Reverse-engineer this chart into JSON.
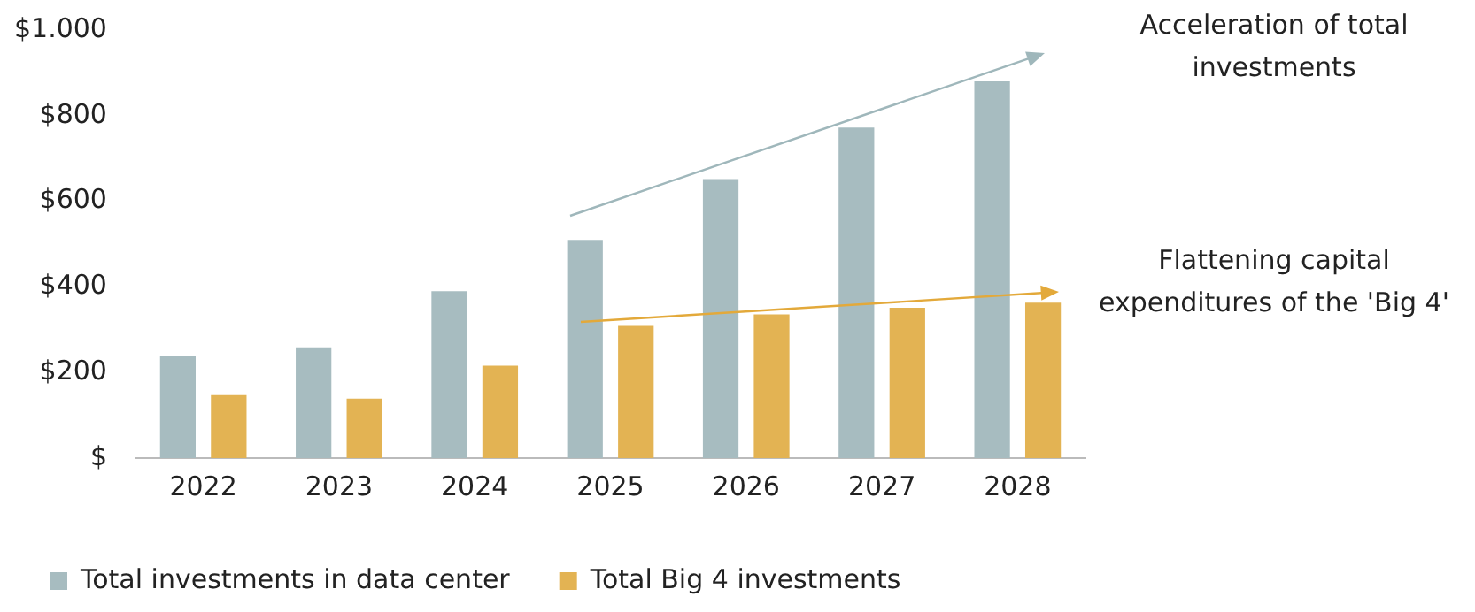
{
  "chart_data": {
    "type": "bar",
    "categories": [
      "2022",
      "2023",
      "2024",
      "2025",
      "2026",
      "2027",
      "2028"
    ],
    "series": [
      {
        "name": "Total investments in data center",
        "color": "#a7bcc0",
        "values": [
          239,
          259,
          390,
          510,
          652,
          772,
          880
        ]
      },
      {
        "name": "Total Big 4 investments",
        "color": "#e3b353",
        "values": [
          147,
          139,
          216,
          309,
          336,
          351,
          363
        ]
      }
    ],
    "ylim": [
      0,
      1000
    ],
    "yticks": [
      {
        "value": 0,
        "label": "$"
      },
      {
        "value": 200,
        "label": "$200"
      },
      {
        "value": 400,
        "label": "$400"
      },
      {
        "value": 600,
        "label": "$600"
      },
      {
        "value": 800,
        "label": "$800"
      },
      {
        "value": 1000,
        "label": "$1.000"
      }
    ],
    "grid": false,
    "legend": "bottom",
    "annotations": [
      "Acceleration of total investments",
      "Flattening capital expenditures of the 'Big 4'"
    ]
  }
}
